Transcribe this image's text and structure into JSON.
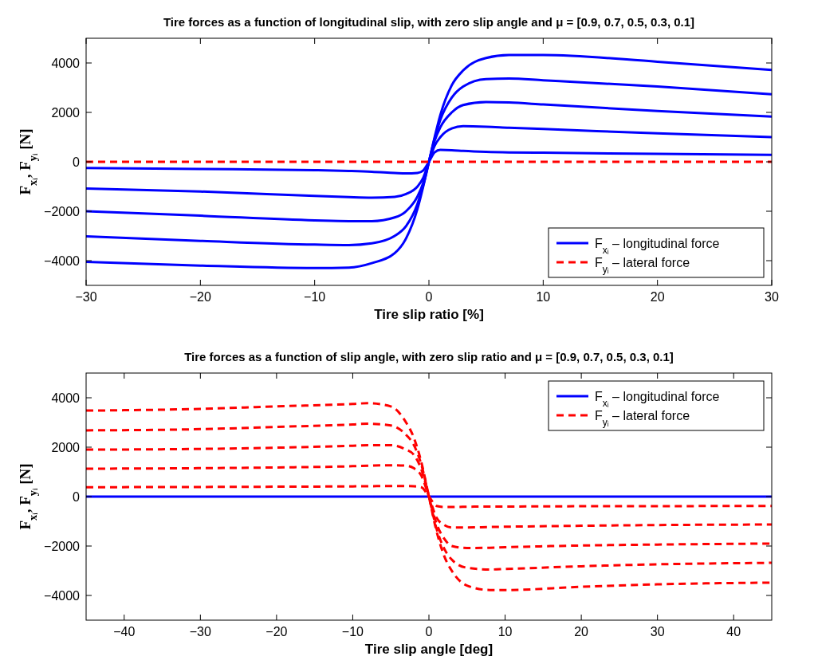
{
  "chart_data": [
    {
      "type": "line",
      "title": "Tire forces as a function of longitudinal slip, with zero slip angle and μ = [0.9, 0.7, 0.5, 0.3, 0.1]",
      "xlabel": "Tire slip ratio [%]",
      "ylabel": "F$_{xᵢ}$, F$_{yᵢ}$ [N]",
      "x": [
        -30,
        -20,
        -10,
        -7,
        -5,
        -3,
        -2,
        -1,
        -0.5,
        0,
        0.5,
        1,
        2,
        3,
        5,
        7,
        10,
        20,
        30
      ],
      "xlim": [
        -30,
        30
      ],
      "xticks": [
        -30,
        -20,
        -10,
        0,
        10,
        20,
        30
      ],
      "ylim": [
        -5000,
        5000
      ],
      "yticks": [
        -4000,
        -2000,
        0,
        2000,
        4000
      ],
      "grid": false,
      "legend": "bottom right",
      "series": [
        {
          "name": "F$_{xᵢ}$ – longitudinal force",
          "color": "#0000ff",
          "line_style": "solid",
          "values": [
            -4050,
            -4200,
            -4300,
            -4280,
            -4100,
            -3700,
            -3100,
            -1900,
            -1000,
            0,
            1000,
            1900,
            3100,
            3700,
            4200,
            4320,
            4320,
            4050,
            3720
          ]
        },
        {
          "color": "#0000ff",
          "line_style": "solid",
          "values": [
            -3020,
            -3200,
            -3350,
            -3370,
            -3300,
            -3000,
            -2600,
            -1700,
            -950,
            0,
            950,
            1700,
            2600,
            3050,
            3350,
            3370,
            3300,
            3050,
            2730
          ]
        },
        {
          "color": "#0000ff",
          "line_style": "solid",
          "values": [
            -2000,
            -2180,
            -2370,
            -2400,
            -2400,
            -2250,
            -2000,
            -1400,
            -850,
            0,
            850,
            1400,
            2000,
            2300,
            2420,
            2400,
            2320,
            2060,
            1830
          ]
        },
        {
          "color": "#0000ff",
          "line_style": "solid",
          "values": [
            -1080,
            -1200,
            -1380,
            -1430,
            -1450,
            -1420,
            -1300,
            -1000,
            -650,
            0,
            650,
            1000,
            1350,
            1440,
            1420,
            1380,
            1330,
            1150,
            1000
          ]
        },
        {
          "color": "#0000ff",
          "line_style": "solid",
          "values": [
            -250,
            -290,
            -340,
            -370,
            -400,
            -450,
            -470,
            -450,
            -350,
            0,
            380,
            480,
            470,
            440,
            400,
            380,
            370,
            320,
            280
          ]
        },
        {
          "name": "F$_{yᵢ}$ – lateral force",
          "color": "#ff0000",
          "line_style": "dashed",
          "x": [
            -30,
            30
          ],
          "values": [
            0,
            0
          ]
        }
      ]
    },
    {
      "type": "line",
      "title": "Tire forces as a function of slip angle, with zero slip ratio and μ = [0.9, 0.7, 0.5, 0.3, 0.1]",
      "xlabel": "Tire slip angle [deg]",
      "ylabel": "F$_{xᵢ}$, F$_{yᵢ}$ [N]",
      "x": [
        -45,
        -30,
        -20,
        -10,
        -8,
        -5,
        -3,
        -2,
        -1,
        0,
        1,
        2,
        3,
        5,
        8,
        10,
        20,
        30,
        45
      ],
      "xlim": [
        -45,
        45
      ],
      "xticks": [
        -40,
        -30,
        -20,
        -10,
        0,
        10,
        20,
        30,
        40
      ],
      "ylim": [
        -5000,
        5000
      ],
      "yticks": [
        -4000,
        -2000,
        0,
        2000,
        4000
      ],
      "grid": false,
      "legend": "top right",
      "series": [
        {
          "name": "F$_{xᵢ}$ – longitudinal force",
          "color": "#0000ff",
          "line_style": "solid",
          "x": [
            -45,
            45
          ],
          "values": [
            0,
            0
          ]
        },
        {
          "name": "F$_{yᵢ}$ – lateral force",
          "color": "#ff0000",
          "line_style": "dashed",
          "values": [
            3480,
            3550,
            3650,
            3750,
            3780,
            3650,
            3000,
            2400,
            1400,
            0,
            -1400,
            -2400,
            -3000,
            -3600,
            -3780,
            -3780,
            -3650,
            -3550,
            -3480
          ]
        },
        {
          "color": "#ff0000",
          "line_style": "dashed",
          "values": [
            2680,
            2730,
            2820,
            2920,
            2950,
            2880,
            2500,
            2100,
            1300,
            0,
            -1300,
            -2100,
            -2550,
            -2880,
            -2950,
            -2930,
            -2820,
            -2740,
            -2680
          ]
        },
        {
          "color": "#ff0000",
          "line_style": "dashed",
          "values": [
            1900,
            1930,
            1980,
            2060,
            2080,
            2080,
            1900,
            1700,
            1100,
            0,
            -1100,
            -1700,
            -2000,
            -2080,
            -2070,
            -2050,
            -1980,
            -1940,
            -1900
          ]
        },
        {
          "color": "#ff0000",
          "line_style": "dashed",
          "values": [
            1130,
            1150,
            1180,
            1230,
            1250,
            1270,
            1250,
            1150,
            850,
            0,
            -850,
            -1150,
            -1250,
            -1250,
            -1230,
            -1220,
            -1180,
            -1150,
            -1130
          ]
        },
        {
          "color": "#ff0000",
          "line_style": "dashed",
          "values": [
            380,
            390,
            400,
            415,
            420,
            430,
            430,
            420,
            380,
            0,
            -380,
            -420,
            -420,
            -410,
            -400,
            -400,
            -390,
            -385,
            -380
          ]
        }
      ]
    }
  ]
}
